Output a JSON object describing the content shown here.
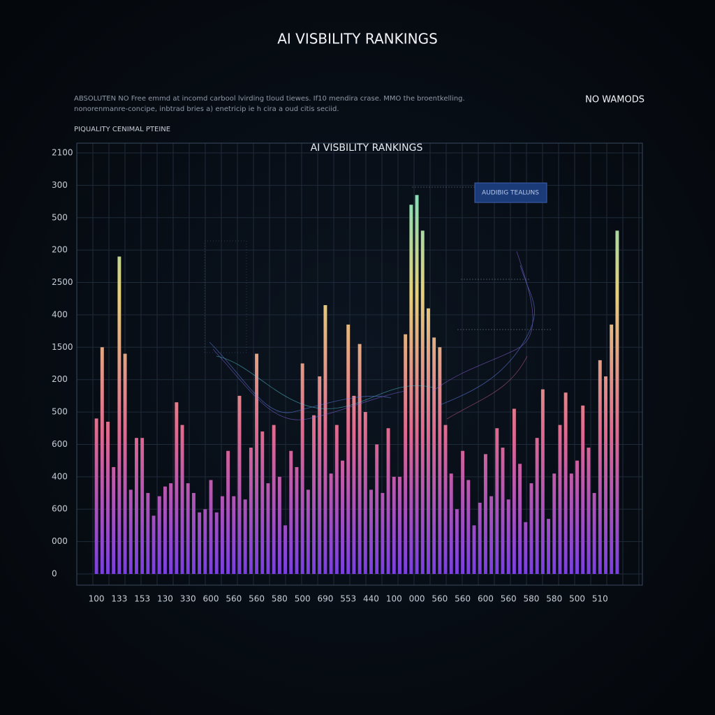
{
  "chart_data": {
    "type": "bar",
    "title": "AI VISBILITY RANKINGS",
    "subtitle": [
      "ABSOLUTEN NO Free emmd at incomd carbool lvirding tloud tiewes. If10 mendira crase. MMO the broentkelling.",
      "nonorenmanre-concipe, inbtrad bries a) enetricip ie h cira a oud citis seciid."
    ],
    "corner_note": "NO WAMODS",
    "section_label": "PIQUALITY CENIMAL PTEINE",
    "plot_title": "AI VISBILITY RANKINGS",
    "categories": [
      "100",
      null,
      null,
      null,
      "133",
      null,
      null,
      null,
      "153",
      null,
      null,
      null,
      "130",
      null,
      null,
      null,
      "330",
      null,
      null,
      null,
      "600",
      null,
      null,
      null,
      "560",
      null,
      null,
      null,
      "560",
      null,
      null,
      null,
      "580",
      null,
      null,
      null,
      "500",
      null,
      null,
      null,
      "690",
      null,
      null,
      null,
      "553",
      null,
      null,
      null,
      "440",
      null,
      null,
      null,
      "100",
      null,
      null,
      null,
      "000",
      null,
      null,
      null,
      "560",
      null,
      null,
      null,
      "560",
      null,
      null,
      null,
      "600",
      null,
      null,
      null,
      "560",
      null,
      null,
      null,
      "580",
      null,
      null,
      null,
      "580",
      null,
      null,
      null,
      "500",
      null,
      null,
      null,
      "510",
      null,
      null,
      null
    ],
    "series": [
      {
        "name": "AUDIBIG TEALUNS",
        "values": [
          480,
          700,
          470,
          330,
          980,
          680,
          260,
          420,
          420,
          250,
          180,
          240,
          270,
          280,
          530,
          460,
          280,
          250,
          190,
          200,
          290,
          190,
          240,
          380,
          240,
          550,
          230,
          390,
          680,
          440,
          280,
          460,
          300,
          150,
          380,
          330,
          650,
          260,
          490,
          610,
          830,
          310,
          460,
          350,
          770,
          550,
          710,
          500,
          260,
          400,
          250,
          450,
          300,
          300,
          740,
          1140,
          1170,
          1060,
          820,
          730,
          700,
          460,
          310,
          200,
          380,
          290,
          150,
          220,
          370,
          240,
          450,
          390,
          230,
          510,
          340,
          160,
          280,
          420,
          570,
          170,
          310,
          460,
          560,
          310,
          350,
          520,
          390,
          250,
          660,
          610,
          770,
          1060
        ]
      }
    ],
    "gradient": [
      "#7a3fe0",
      "#e0688f",
      "#e6d07a",
      "#5fe3d2"
    ],
    "ylim": [
      0,
      1300
    ],
    "yticks": [
      0,
      {
        "value": 100,
        "label": "000"
      },
      {
        "value": 200,
        "label": "600"
      },
      {
        "value": 300,
        "label": "400"
      },
      {
        "value": 400,
        "label": "600"
      },
      {
        "value": 500,
        "label": "500"
      },
      {
        "value": 600,
        "label": "200"
      },
      {
        "value": 700,
        "label": "1500"
      },
      {
        "value": 800,
        "label": "400"
      },
      {
        "value": 900,
        "label": "2500"
      },
      {
        "value": 1000,
        "label": "200"
      },
      {
        "value": 1100,
        "label": "500"
      },
      {
        "value": 1200,
        "label": "300"
      },
      {
        "value": 1300,
        "label": "2100"
      }
    ],
    "grid": true
  }
}
